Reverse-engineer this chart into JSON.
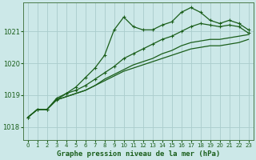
{
  "title": "Graphe pression niveau de la mer (hPa)",
  "background_color": "#cce8e8",
  "plot_bg": "#cce8e8",
  "grid_color": "#aacccc",
  "line_color": "#1a5e1a",
  "xlim": [
    -0.5,
    23.5
  ],
  "ylim": [
    1017.6,
    1021.9
  ],
  "yticks": [
    1018,
    1019,
    1020,
    1021
  ],
  "xticks": [
    0,
    1,
    2,
    3,
    4,
    5,
    6,
    7,
    8,
    9,
    10,
    11,
    12,
    13,
    14,
    15,
    16,
    17,
    18,
    19,
    20,
    21,
    22,
    23
  ],
  "series": [
    {
      "y": [
        1018.3,
        1018.55,
        1018.55,
        1018.85,
        1019.05,
        1019.25,
        1019.55,
        1019.85,
        1020.25,
        1021.05,
        1021.45,
        1021.15,
        1021.05,
        1021.05,
        1021.2,
        1021.3,
        1021.6,
        1021.75,
        1021.6,
        1021.35,
        1021.25,
        1021.35,
        1021.25,
        1021.05
      ],
      "marker": "+",
      "linestyle": "-",
      "lw": 0.9
    },
    {
      "y": [
        1018.3,
        1018.55,
        1018.55,
        1018.9,
        1019.05,
        1019.15,
        1019.3,
        1019.5,
        1019.7,
        1019.9,
        1020.15,
        1020.3,
        1020.45,
        1020.6,
        1020.75,
        1020.85,
        1021.0,
        1021.15,
        1021.25,
        1021.2,
        1021.15,
        1021.2,
        1021.15,
        1020.95
      ],
      "marker": "+",
      "linestyle": "-",
      "lw": 0.9
    },
    {
      "y": [
        1018.3,
        1018.55,
        1018.55,
        1018.85,
        1018.95,
        1019.05,
        1019.15,
        1019.3,
        1019.5,
        1019.65,
        1019.8,
        1019.95,
        1020.05,
        1020.15,
        1020.3,
        1020.4,
        1020.55,
        1020.65,
        1020.7,
        1020.75,
        1020.75,
        1020.8,
        1020.85,
        1020.9
      ],
      "marker": null,
      "linestyle": "-",
      "lw": 0.9
    },
    {
      "y": [
        1018.3,
        1018.55,
        1018.55,
        1018.85,
        1018.95,
        1019.05,
        1019.15,
        1019.3,
        1019.45,
        1019.6,
        1019.75,
        1019.85,
        1019.95,
        1020.05,
        1020.15,
        1020.25,
        1020.35,
        1020.45,
        1020.5,
        1020.55,
        1020.55,
        1020.6,
        1020.65,
        1020.75
      ],
      "marker": null,
      "linestyle": "-",
      "lw": 0.9
    }
  ]
}
